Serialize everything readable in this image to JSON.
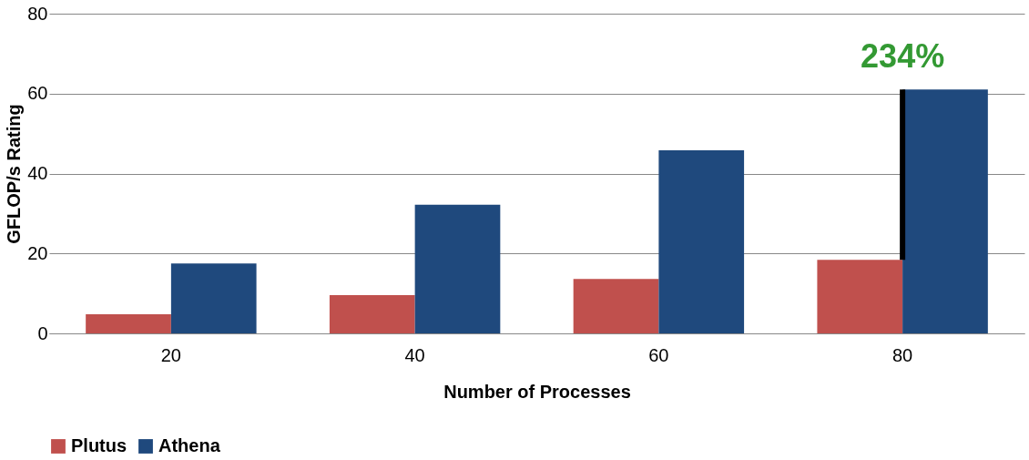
{
  "chart_data": {
    "type": "bar",
    "xlabel": "Number of Processes",
    "ylabel": "GFLOP/s Rating",
    "categories": [
      "20",
      "40",
      "60",
      "80"
    ],
    "series": [
      {
        "name": "Plutus",
        "color": "#c0504d",
        "values": [
          4.8,
          9.6,
          13.6,
          18.4
        ]
      },
      {
        "name": "Athena",
        "color": "#1f497d",
        "values": [
          17.5,
          32.2,
          45.8,
          61.0
        ]
      }
    ],
    "ylim": [
      0,
      80
    ],
    "yticks": [
      0,
      20,
      40,
      60,
      80
    ],
    "grid": "y",
    "legend": "bottom",
    "annotations": [
      {
        "text": "234%",
        "x": "80",
        "y": 61.0
      }
    ]
  }
}
